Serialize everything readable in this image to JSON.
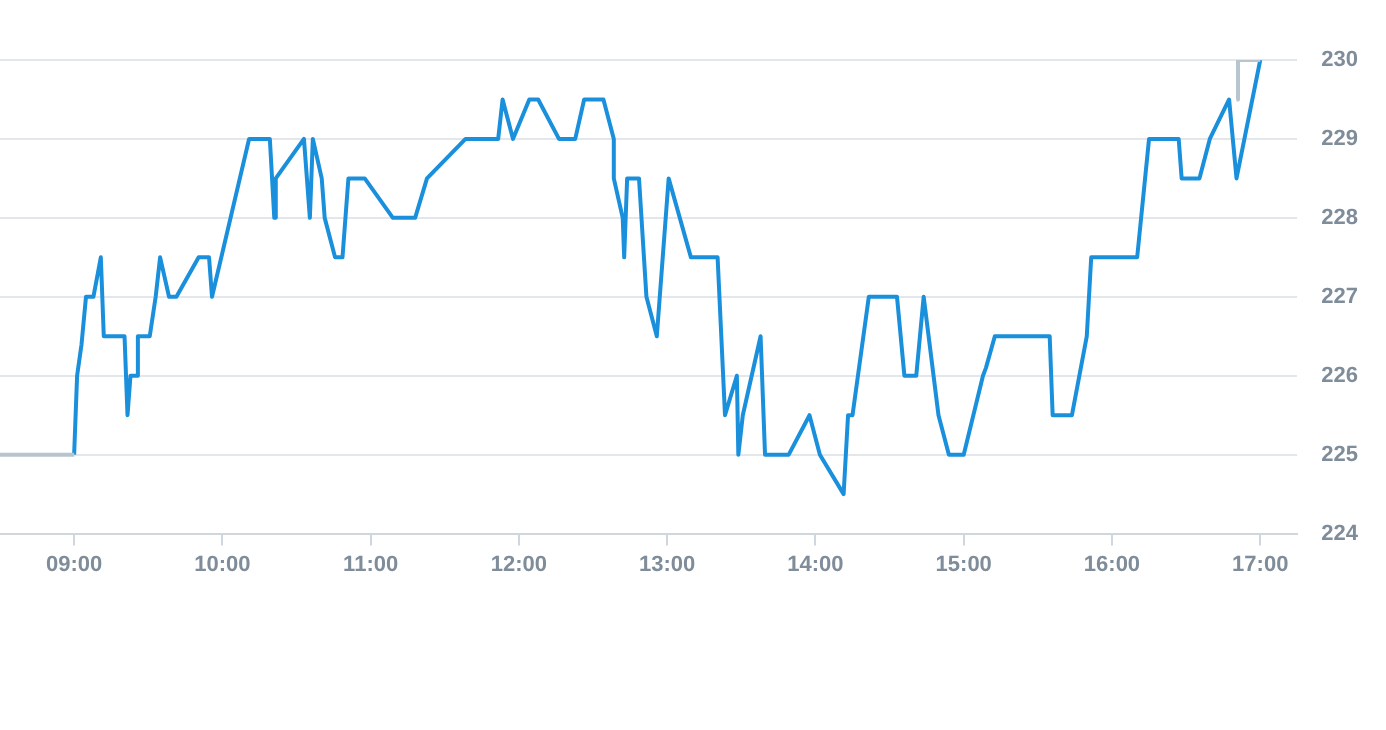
{
  "chart_data": {
    "type": "line",
    "xlim": [
      8.5,
      17.25
    ],
    "ylim": [
      224,
      230
    ],
    "xticks": [
      {
        "value": 9,
        "label": "09:00"
      },
      {
        "value": 10,
        "label": "10:00"
      },
      {
        "value": 11,
        "label": "11:00"
      },
      {
        "value": 12,
        "label": "12:00"
      },
      {
        "value": 13,
        "label": "13:00"
      },
      {
        "value": 14,
        "label": "14:00"
      },
      {
        "value": 15,
        "label": "15:00"
      },
      {
        "value": 16,
        "label": "16:00"
      },
      {
        "value": 17,
        "label": "17:00"
      }
    ],
    "yticks": [
      224,
      225,
      226,
      227,
      228,
      229,
      230
    ],
    "grid": "y",
    "legend": false,
    "marker": "none",
    "line_style": "solid",
    "series": [
      {
        "color": "#b8c4ce",
        "x": [
          8.5,
          9.0
        ],
        "values": [
          225,
          225
        ]
      },
      {
        "color": "#b8c4ce",
        "x": [
          16.84,
          16.85,
          17.0
        ],
        "values": [
          229.5,
          230,
          230
        ]
      },
      {
        "color": "#1a90dc",
        "x": [
          9.0,
          9.02,
          9.05,
          9.08,
          9.13,
          9.18,
          9.2,
          9.34,
          9.36,
          9.38,
          9.42,
          9.43,
          9.51,
          9.55,
          9.58,
          9.64,
          9.69,
          9.84,
          9.91,
          9.93,
          10.18,
          10.32,
          10.35,
          10.36,
          10.55,
          10.59,
          10.61,
          10.67,
          10.69,
          10.76,
          10.81,
          10.85,
          10.96,
          11.15,
          11.3,
          11.38,
          11.64,
          11.86,
          11.89,
          11.96,
          12.07,
          12.13,
          12.27,
          12.38,
          12.44,
          12.57,
          12.64,
          12.64,
          12.7,
          12.71,
          12.73,
          12.81,
          12.86,
          12.93,
          13.01,
          13.16,
          13.34,
          13.39,
          13.47,
          13.48,
          13.51,
          13.63,
          13.66,
          13.82,
          13.96,
          14.03,
          14.19,
          14.22,
          14.25,
          14.36,
          14.55,
          14.6,
          14.68,
          14.73,
          14.83,
          14.9,
          15.0,
          15.13,
          15.15,
          15.21,
          15.58,
          15.6,
          15.73,
          15.83,
          15.86,
          16.17,
          16.25,
          16.45,
          16.47,
          16.59,
          16.66,
          16.79,
          16.84,
          17.0
        ],
        "values": [
          225,
          226,
          226.4,
          227,
          227,
          227.5,
          226.5,
          226.5,
          225.5,
          226,
          226,
          226.5,
          226.5,
          227,
          227.5,
          227,
          227,
          227.5,
          227.5,
          227,
          229,
          229,
          228,
          228.5,
          229,
          228,
          229,
          228.5,
          228,
          227.5,
          227.5,
          228.5,
          228.5,
          228,
          228,
          228.5,
          229,
          229,
          229.5,
          229,
          229.5,
          229.5,
          229,
          229,
          229.5,
          229.5,
          229,
          228.5,
          228,
          227.5,
          228.5,
          228.5,
          227,
          226.5,
          228.5,
          227.5,
          227.5,
          225.5,
          226,
          225,
          225.5,
          226.5,
          225,
          225,
          225.5,
          225,
          224.5,
          225.5,
          225.5,
          227,
          227,
          226,
          226,
          227,
          225.5,
          225,
          225,
          226,
          226.1,
          226.5,
          226.5,
          225.5,
          225.5,
          226.5,
          227.5,
          227.5,
          229,
          229,
          228.5,
          228.5,
          229,
          229.5,
          228.5,
          230
        ]
      }
    ]
  }
}
